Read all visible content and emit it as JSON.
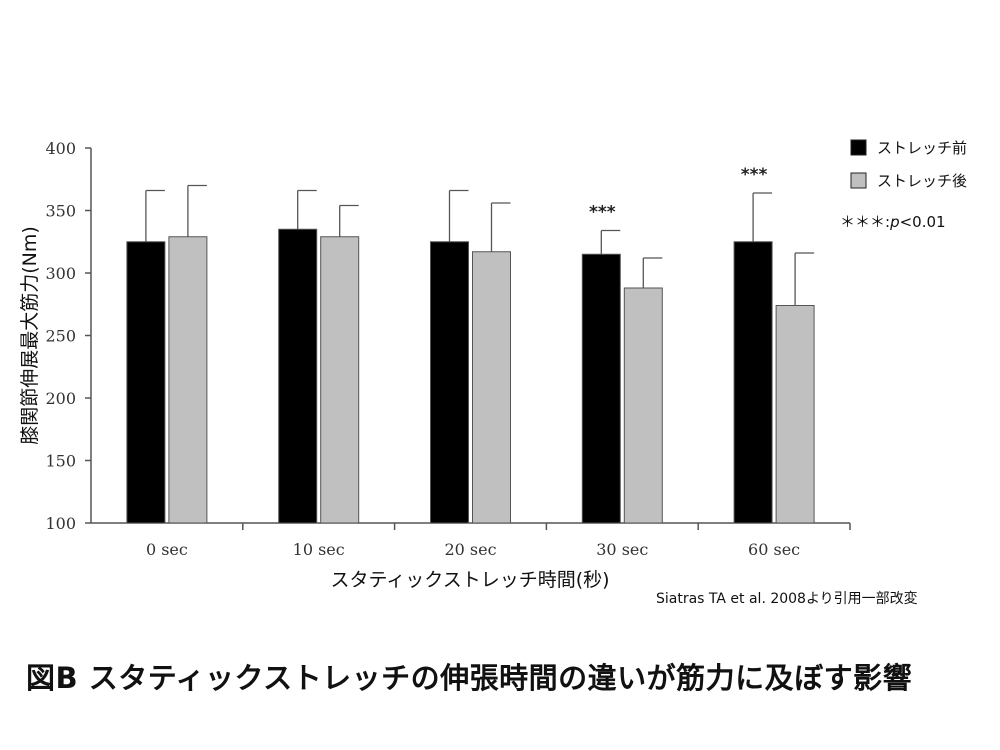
{
  "chart_data": {
    "type": "bar",
    "title": "",
    "categories": [
      "0 sec",
      "10 sec",
      "20 sec",
      "30 sec",
      "60 sec"
    ],
    "series": [
      {
        "name": "ストレッチ前",
        "color": "#000000",
        "values": [
          325,
          335,
          325,
          315,
          325
        ],
        "error_upper": [
          41,
          31,
          41,
          19,
          39
        ]
      },
      {
        "name": "ストレッチ後",
        "color": "#c0c0c0",
        "values": [
          329,
          329,
          317,
          288,
          274
        ],
        "error_upper": [
          41,
          25,
          39,
          24,
          42
        ]
      }
    ],
    "significance": [
      "",
      "",
      "",
      "***",
      "***"
    ],
    "ylim": [
      100,
      400
    ],
    "yticks": [
      100,
      150,
      200,
      250,
      300,
      350,
      400
    ],
    "ylabel": "膝関節伸展最大筋力(Nm)",
    "xlabel": "スタティックストレッチ時間(秒)",
    "legend_position": "top-right",
    "legend_note_prefix": "＊＊＊:",
    "legend_note_p": "p",
    "legend_note_value": "<0.01",
    "grid": false
  },
  "source_note": "Siatras TA et al. 2008より引用一部改変",
  "figure_caption": "図B  スタティックストレッチの伸張時間の違いが筋力に及ぼす影響"
}
